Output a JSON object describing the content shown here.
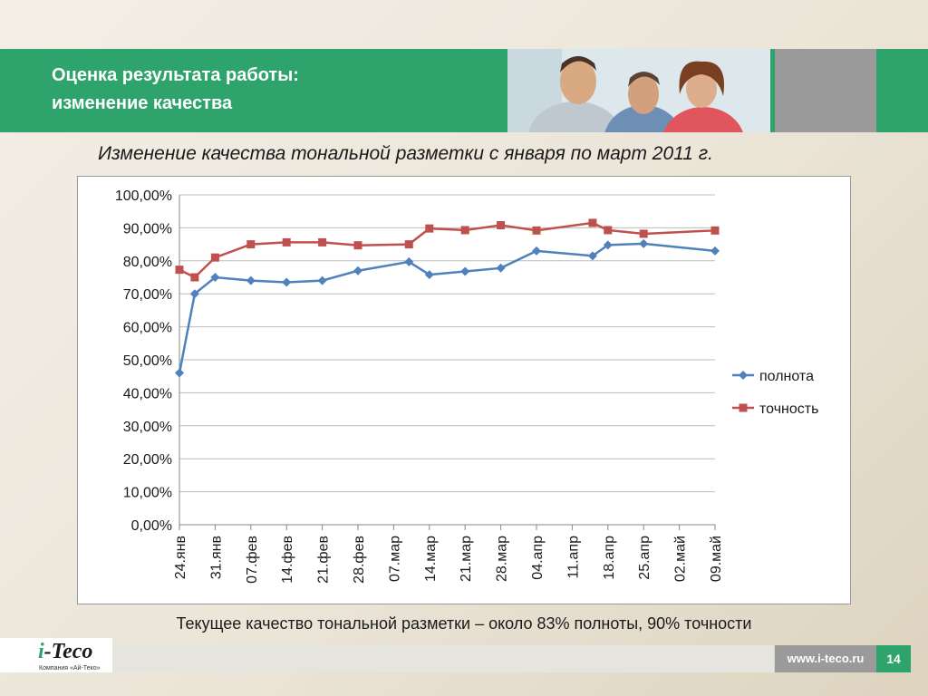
{
  "header": {
    "title_line1": "Оценка результата работы:",
    "title_line2": "изменение качества"
  },
  "chart_heading": "Изменение качества тональной разметки с января по март 2011 г.",
  "caption": "Текущее качество тональной разметки – около 83% полноты, 90% точности",
  "footer": {
    "logo_i": "i",
    "logo_rest": "-Teco",
    "logo_sub": "Компания «Ай-Теко»",
    "url": "www.i-teco.ru",
    "page_number": "14"
  },
  "colors": {
    "green": "#2ea36b",
    "series_recall": "#4f81bd",
    "series_precision": "#c0504d"
  },
  "chart_data": {
    "type": "line",
    "title": "",
    "x_ticks": [
      "24.янв",
      "31.янв",
      "07.фев",
      "14.фев",
      "21.фев",
      "28.фев",
      "07.мар",
      "14.мар",
      "21.мар",
      "28.мар",
      "04.апр",
      "11.апр",
      "18.апр",
      "25.апр",
      "02.май",
      "09.май"
    ],
    "y_ticks": [
      "0,00%",
      "10,00%",
      "20,00%",
      "30,00%",
      "40,00%",
      "50,00%",
      "60,00%",
      "70,00%",
      "80,00%",
      "90,00%",
      "100,00%"
    ],
    "ylim": [
      0,
      100
    ],
    "grid": true,
    "legend_position": "right",
    "series": [
      {
        "name": "полнота",
        "color": "#4f81bd",
        "marker": "diamond",
        "points": [
          [
            "24.01",
            46.0
          ],
          [
            "27.01",
            70.0
          ],
          [
            "31.01",
            75.0
          ],
          [
            "07.02",
            74.0
          ],
          [
            "14.02",
            73.5
          ],
          [
            "21.02",
            74.0
          ],
          [
            "28.02",
            77.0
          ],
          [
            "10.03",
            79.7
          ],
          [
            "14.03",
            75.8
          ],
          [
            "21.03",
            76.8
          ],
          [
            "28.03",
            77.8
          ],
          [
            "04.04",
            83.0
          ],
          [
            "15.04",
            81.5
          ],
          [
            "18.04",
            84.8
          ],
          [
            "25.04",
            85.2
          ],
          [
            "09.05",
            83.0
          ]
        ]
      },
      {
        "name": "точность",
        "color": "#c0504d",
        "marker": "square",
        "points": [
          [
            "24.01",
            77.3
          ],
          [
            "27.01",
            75.0
          ],
          [
            "31.01",
            81.0
          ],
          [
            "07.02",
            85.0
          ],
          [
            "14.02",
            85.6
          ],
          [
            "21.02",
            85.6
          ],
          [
            "28.02",
            84.7
          ],
          [
            "10.03",
            85.0
          ],
          [
            "14.03",
            89.8
          ],
          [
            "21.03",
            89.3
          ],
          [
            "28.03",
            90.8
          ],
          [
            "04.04",
            89.2
          ],
          [
            "15.04",
            91.5
          ],
          [
            "18.04",
            89.3
          ],
          [
            "25.04",
            88.2
          ],
          [
            "09.05",
            89.2
          ]
        ]
      }
    ]
  }
}
